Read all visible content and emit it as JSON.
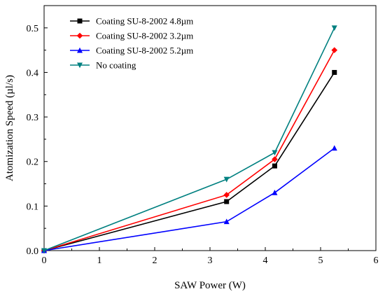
{
  "chart_data": {
    "type": "line",
    "xlabel": "SAW Power (W)",
    "ylabel": "Atomization Speed (µl/s)",
    "xlim": [
      0,
      6
    ],
    "ylim": [
      0,
      0.55
    ],
    "xticks": [
      0,
      1,
      2,
      3,
      4,
      5,
      6
    ],
    "yticks": [
      0.0,
      0.1,
      0.2,
      0.3,
      0.4,
      0.5
    ],
    "xtick_labels": [
      "0",
      "1",
      "2",
      "3",
      "4",
      "5",
      "6"
    ],
    "ytick_labels": [
      "0.0",
      "0.1",
      "0.2",
      "0.3",
      "0.4",
      "0.5"
    ],
    "grid": false,
    "legend_position": "top-left",
    "x": [
      0,
      3.3,
      4.17,
      5.25
    ],
    "series": [
      {
        "name": "Coating SU-8-2002 4.8µm",
        "values": [
          0,
          0.11,
          0.19,
          0.4
        ],
        "color": "#000000",
        "marker": "square"
      },
      {
        "name": "Coating SU-8-2002 3.2µm",
        "values": [
          0,
          0.125,
          0.205,
          0.45
        ],
        "color": "#ff0000",
        "marker": "diamond"
      },
      {
        "name": "Coating SU-8-2002 5.2µm",
        "values": [
          0,
          0.065,
          0.13,
          0.23
        ],
        "color": "#0000ff",
        "marker": "triangle-up"
      },
      {
        "name": "No coating",
        "values": [
          0,
          0.16,
          0.22,
          0.5
        ],
        "color": "#008080",
        "marker": "triangle-down"
      }
    ]
  }
}
